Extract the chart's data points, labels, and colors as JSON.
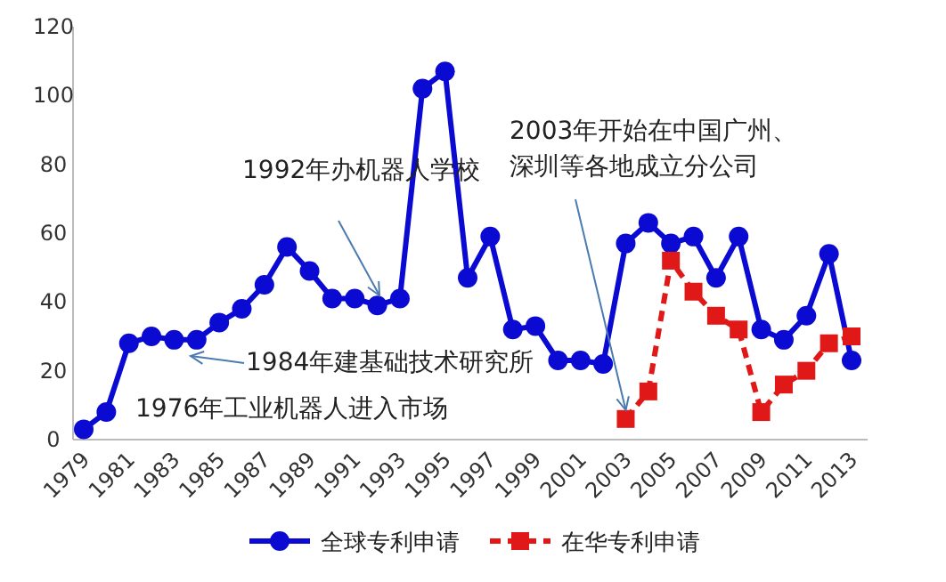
{
  "chart_data": {
    "type": "line",
    "categories": [
      "1979",
      null,
      "1981",
      null,
      "1983",
      null,
      "1985",
      null,
      "1987",
      null,
      "1989",
      null,
      "1991",
      null,
      "1993",
      null,
      "1995",
      null,
      "1997",
      null,
      "1999",
      null,
      "2001",
      null,
      "2003",
      null,
      "2005",
      null,
      "2007",
      null,
      "2009",
      null,
      "2011",
      null,
      "2013"
    ],
    "series": [
      {
        "name": "全球专利申请",
        "color": "#0a0ad2",
        "marker": "circle",
        "line_style": "solid",
        "values": [
          3,
          8,
          28,
          30,
          29,
          29,
          34,
          38,
          45,
          56,
          49,
          41,
          41,
          39,
          41,
          102,
          107,
          47,
          59,
          32,
          33,
          23,
          23,
          22,
          57,
          63,
          57,
          59,
          47,
          59,
          32,
          29,
          36,
          54,
          23
        ]
      },
      {
        "name": "在华专利申请",
        "color": "#e01818",
        "marker": "square",
        "line_style": "dashed",
        "values": [
          null,
          null,
          null,
          null,
          null,
          null,
          null,
          null,
          null,
          null,
          null,
          null,
          null,
          null,
          null,
          null,
          null,
          null,
          null,
          null,
          null,
          null,
          null,
          null,
          6,
          14,
          52,
          43,
          36,
          32,
          8,
          16,
          20,
          28,
          30
        ]
      }
    ],
    "ylim": [
      0,
      120
    ],
    "yticks": [
      0,
      20,
      40,
      60,
      80,
      100,
      120
    ],
    "grid": false,
    "legend": "bottom",
    "annotations": [
      {
        "text": "2003年开始在中国广州、深圳等各地成立分公司",
        "x": "2003",
        "y": 6
      },
      "1992年办机器人学校",
      "1984年建基础技术研究所",
      "1976年工业机器人进入市场"
    ]
  }
}
